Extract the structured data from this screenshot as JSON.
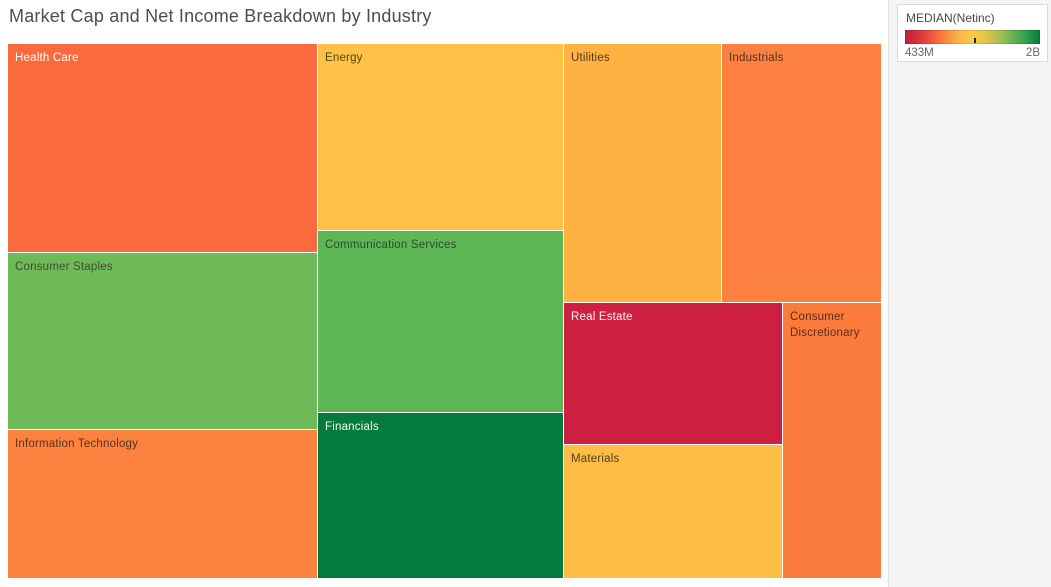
{
  "title": "Market Cap and Net Income Breakdown by Industry",
  "legend": {
    "title": "MEDIAN(Netinc)",
    "min_label": "433M",
    "max_label": "2B",
    "tick_position_pct": 52,
    "gradient_colors": [
      "#bf2140",
      "#d93636",
      "#f0593a",
      "#fb8a3e",
      "#fdb544",
      "#fdcb49",
      "#e0c54c",
      "#a8bf50",
      "#6ab354",
      "#31a04e",
      "#0b7c3c"
    ]
  },
  "chart_data": {
    "type": "treemap",
    "title": "Market Cap and Net Income Breakdown by Industry",
    "size_encoding": "Market Cap (tile area)",
    "color_encoding": "MEDIAN(Netinc)",
    "color_scale": {
      "min_label": "433M",
      "max_label": "2B",
      "min_color": "#bf2140",
      "max_color": "#0b7c3c"
    },
    "legend_position": "top-right",
    "tiles": [
      {
        "label": "Health Care",
        "color": "#fb6a3d",
        "label_color": "#fffdf8",
        "area_share_pct_est": 13.8,
        "median_netinc_est": "~650M"
      },
      {
        "label": "Consumer Staples",
        "color": "#6fba58",
        "label_color": "#3f4d2e",
        "area_share_pct_est": 11.7,
        "median_netinc_est": "~1.5B"
      },
      {
        "label": "Information Technology",
        "color": "#fc833f",
        "label_color": "#53351f",
        "area_share_pct_est": 9.8,
        "median_netinc_est": "~750M"
      },
      {
        "label": "Energy",
        "color": "#ffc247",
        "label_color": "#564312",
        "area_share_pct_est": 9.8,
        "median_netinc_est": "~1.0B"
      },
      {
        "label": "Communication Services",
        "color": "#5db757",
        "label_color": "#2f4a28",
        "area_share_pct_est": 9.5,
        "median_netinc_est": "~1.5B"
      },
      {
        "label": "Financials",
        "color": "#047b3c",
        "label_color": "#f7fbf4",
        "area_share_pct_est": 8.7,
        "median_netinc_est": "~1.9B"
      },
      {
        "label": "Utilities",
        "color": "#feb242",
        "label_color": "#55381a",
        "area_share_pct_est": 8.6,
        "median_netinc_est": "~900M"
      },
      {
        "label": "Industrials",
        "color": "#fc8140",
        "label_color": "#56301d",
        "area_share_pct_est": 8.8,
        "median_netinc_est": "~750M"
      },
      {
        "label": "Real Estate",
        "color": "#cd2040",
        "label_color": "#fdf2f1",
        "area_share_pct_est": 6.6,
        "median_netinc_est": "~450M"
      },
      {
        "label": "Materials",
        "color": "#fdbc45",
        "label_color": "#564113",
        "area_share_pct_est": 6.2,
        "median_netinc_est": "~1.0B"
      },
      {
        "label": "Consumer Discretionary",
        "color": "#fb7b3c",
        "label_color": "#5d2c1c",
        "area_share_pct_est": 5.7,
        "median_netinc_est": "~750M"
      }
    ]
  }
}
